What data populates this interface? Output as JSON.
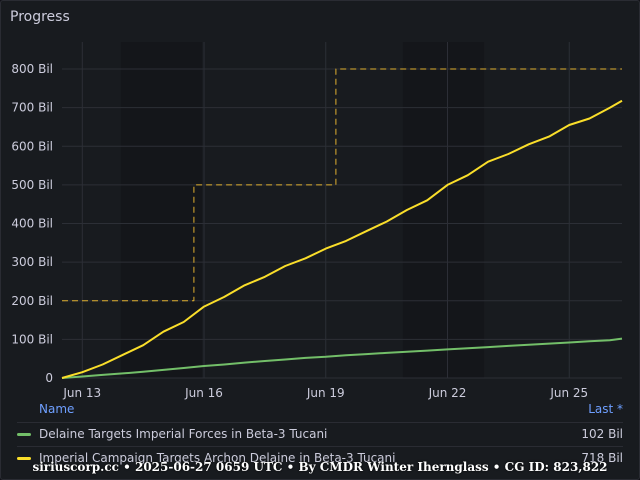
{
  "panel": {
    "title": "Progress"
  },
  "legend": {
    "name_header": "Name",
    "last_header": "Last *",
    "rows": [
      {
        "name": "Delaine Targets Imperial Forces in Beta-3 Tucani",
        "value": "102 Bil",
        "color": "#73bf69"
      },
      {
        "name": "Imperial Campaign Targets Archon Delaine in Beta-3 Tucani",
        "value": "718 Bil",
        "color": "#fade2a"
      }
    ]
  },
  "footer": "siriuscorp.cc • 2025-06-27 0659 UTC • By CMDR Winter Ihernglass • CG ID: 823,822",
  "colors": {
    "background": "#181b1f",
    "grid": "#2c2f36",
    "shade": "#14161a",
    "green": "#73bf69",
    "yellow": "#fade2a",
    "target": "#e0b030"
  },
  "chart_data": {
    "type": "line",
    "xlabel": "",
    "ylabel": "",
    "x_ticks": [
      "Jun 13",
      "Jun 16",
      "Jun 19",
      "Jun 22",
      "Jun 25"
    ],
    "x_tick_days": [
      13,
      16,
      19,
      22,
      25
    ],
    "xlim": [
      12.5,
      26.3
    ],
    "ylim": [
      0,
      870
    ],
    "y_ticks": [
      0,
      100,
      200,
      300,
      400,
      500,
      600,
      700,
      800
    ],
    "y_tick_labels": [
      "0",
      "100 Bil",
      "200 Bil",
      "300 Bil",
      "400 Bil",
      "500 Bil",
      "600 Bil",
      "700 Bil",
      "800 Bil"
    ],
    "grid": true,
    "shaded_day_ranges": [
      [
        13.95,
        15.95
      ],
      [
        20.9,
        22.9
      ]
    ],
    "series": [
      {
        "name": "Delaine Targets Imperial Forces in Beta-3 Tucani",
        "color": "#73bf69",
        "x": [
          12.5,
          13,
          13.5,
          14,
          14.5,
          15,
          15.5,
          16,
          16.5,
          17,
          17.5,
          18,
          18.5,
          19,
          19.5,
          20,
          20.5,
          21,
          21.5,
          22,
          22.5,
          23,
          23.5,
          24,
          24.5,
          25,
          25.5,
          26,
          26.3
        ],
        "y": [
          0,
          4,
          8,
          12,
          16,
          21,
          26,
          31,
          35,
          40,
          44,
          48,
          52,
          55,
          59,
          62,
          65,
          68,
          71,
          74,
          77,
          80,
          83,
          86,
          89,
          92,
          95,
          98,
          102
        ]
      },
      {
        "name": "Imperial Campaign Targets Archon Delaine in Beta-3 Tucani",
        "color": "#fade2a",
        "x": [
          12.5,
          13,
          13.5,
          14,
          14.5,
          15,
          15.5,
          16,
          16.5,
          17,
          17.5,
          18,
          18.5,
          19,
          19.5,
          20,
          20.5,
          21,
          21.5,
          22,
          22.5,
          23,
          23.5,
          24,
          24.5,
          25,
          25.5,
          26,
          26.3
        ],
        "y": [
          0,
          15,
          35,
          60,
          85,
          120,
          145,
          185,
          210,
          240,
          262,
          290,
          310,
          335,
          355,
          380,
          405,
          435,
          460,
          500,
          525,
          560,
          580,
          605,
          625,
          655,
          672,
          700,
          718
        ]
      },
      {
        "name": "",
        "style": "dashed-target",
        "color": "#e0b030",
        "x": [
          12.5,
          15.75,
          15.75,
          19.25,
          19.25,
          21.0,
          21.0,
          26.3
        ],
        "y": [
          200,
          200,
          500,
          500,
          800,
          800,
          800,
          800
        ]
      }
    ]
  }
}
